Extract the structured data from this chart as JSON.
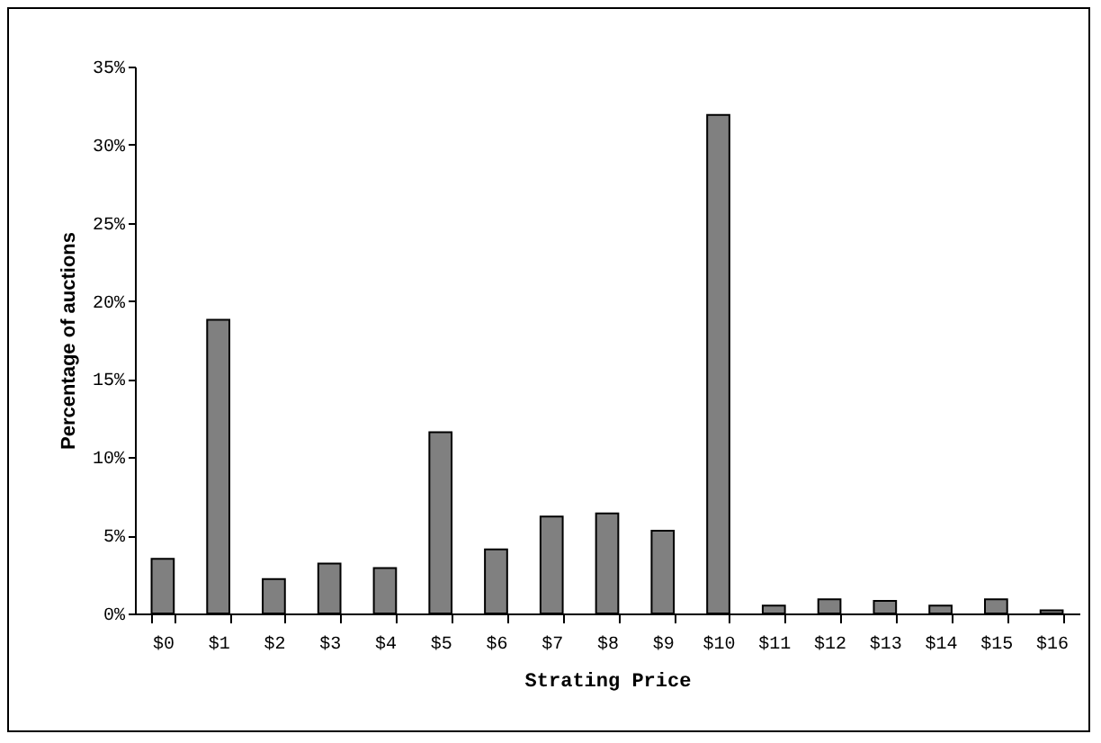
{
  "chart_data": {
    "type": "bar",
    "xlabel": "Strating Price",
    "ylabel": "Percentage of auctions",
    "categories": [
      "$0",
      "$1",
      "$2",
      "$3",
      "$4",
      "$5",
      "$6",
      "$7",
      "$8",
      "$9",
      "$10",
      "$11",
      "$12",
      "$13",
      "$14",
      "$15",
      "$16"
    ],
    "values": [
      3.5,
      18.8,
      2.2,
      3.2,
      2.9,
      11.6,
      4.1,
      6.2,
      6.4,
      5.3,
      31.9,
      0.5,
      0.9,
      0.8,
      0.5,
      0.9,
      0.2
    ],
    "color": "#808080",
    "ylim": [
      0,
      35
    ],
    "yticks": [
      {
        "value": 0,
        "label": "0%"
      },
      {
        "value": 5,
        "label": "5%"
      },
      {
        "value": 10,
        "label": "10%"
      },
      {
        "value": 15,
        "label": "15%"
      },
      {
        "value": 20,
        "label": "20%"
      },
      {
        "value": 25,
        "label": "25%"
      },
      {
        "value": 30,
        "label": "30%"
      },
      {
        "value": 35,
        "label": "35%"
      }
    ],
    "grid": false
  }
}
